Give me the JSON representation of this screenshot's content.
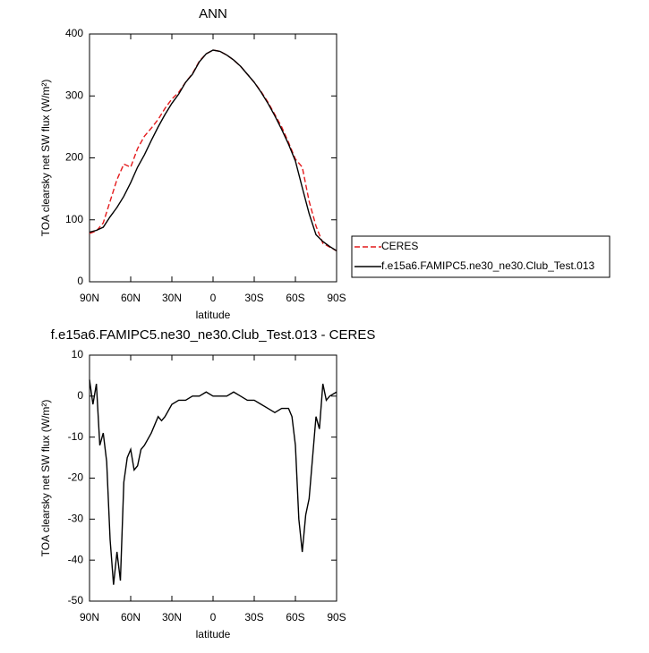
{
  "chart_data": [
    {
      "type": "line",
      "title": "ANN",
      "x_label": "latitude",
      "y_label": "TOA clearsky net SW flux (W/m²)",
      "xlim": [
        90,
        -90
      ],
      "xticks": [
        {
          "value": 90,
          "label": "90N"
        },
        {
          "value": 60,
          "label": "60N"
        },
        {
          "value": 30,
          "label": "30N"
        },
        0,
        {
          "value": -30,
          "label": "30S"
        },
        {
          "value": -60,
          "label": "60S"
        },
        {
          "value": -90,
          "label": "90S"
        }
      ],
      "ylim": [
        0,
        400
      ],
      "yticks": [
        0,
        100,
        200,
        300,
        400
      ],
      "legend": "right",
      "grid": false,
      "x": [
        90,
        85,
        80,
        75,
        70,
        65,
        60,
        55,
        50,
        45,
        40,
        35,
        30,
        25,
        20,
        15,
        10,
        5,
        0,
        -5,
        -10,
        -15,
        -20,
        -25,
        -30,
        -35,
        -40,
        -45,
        -50,
        -55,
        -60,
        -65,
        -70,
        -75,
        -80,
        -85,
        -90
      ],
      "series": [
        {
          "name": "CERES",
          "color": "#e41a1c",
          "line_style": "dashed",
          "values": [
            78,
            82,
            95,
            130,
            165,
            190,
            185,
            215,
            235,
            248,
            262,
            280,
            295,
            306,
            322,
            336,
            356,
            368,
            374,
            372,
            366,
            358,
            348,
            335,
            322,
            307,
            290,
            270,
            250,
            225,
            198,
            185,
            130,
            90,
            62,
            56,
            50
          ]
        },
        {
          "name": "f.e15a6.FAMIPC5.ne30_ne30.Club_Test.013",
          "color": "#000000",
          "line_style": "solid",
          "values": [
            80,
            83,
            88,
            105,
            120,
            138,
            160,
            185,
            205,
            228,
            250,
            270,
            288,
            303,
            322,
            335,
            355,
            368,
            374,
            372,
            366,
            358,
            348,
            335,
            322,
            306,
            288,
            268,
            246,
            222,
            195,
            152,
            110,
            76,
            65,
            57,
            50
          ]
        }
      ]
    },
    {
      "type": "line",
      "title": "f.e15a6.FAMIPC5.ne30_ne30.Club_Test.013 - CERES",
      "x_label": "latitude",
      "y_label": "TOA clearsky net SW flux (W/m²)",
      "xlim": [
        90,
        -90
      ],
      "xticks": [
        {
          "value": 90,
          "label": "90N"
        },
        {
          "value": 60,
          "label": "60N"
        },
        {
          "value": 30,
          "label": "30N"
        },
        0,
        {
          "value": -30,
          "label": "30S"
        },
        {
          "value": -60,
          "label": "60S"
        },
        {
          "value": -90,
          "label": "90S"
        }
      ],
      "ylim": [
        -50,
        10
      ],
      "yticks": [
        -50,
        -40,
        -30,
        -20,
        -10,
        0,
        10
      ],
      "grid": false,
      "x": [
        90,
        87.5,
        85,
        82.5,
        80,
        77.5,
        75,
        72.5,
        70,
        67.5,
        65,
        62.5,
        60,
        57.5,
        55,
        52.5,
        50,
        45,
        40,
        37.5,
        35,
        30,
        25,
        20,
        15,
        10,
        5,
        0,
        -5,
        -10,
        -15,
        -20,
        -25,
        -30,
        -35,
        -40,
        -45,
        -50,
        -55,
        -57.5,
        -60,
        -62.5,
        -65,
        -67.5,
        -70,
        -75,
        -77.5,
        -80,
        -82.5,
        -85,
        -90
      ],
      "series": [
        {
          "color": "#000000",
          "line_style": "solid",
          "values": [
            4,
            -2,
            3,
            -12,
            -9,
            -16,
            -35,
            -46,
            -38,
            -45,
            -21,
            -15,
            -13,
            -18,
            -17,
            -13,
            -12,
            -9,
            -5,
            -6,
            -5,
            -2,
            -1,
            -1,
            0,
            0,
            1,
            0,
            0,
            0,
            1,
            0,
            -1,
            -1,
            -2,
            -3,
            -4,
            -3,
            -3,
            -5,
            -12,
            -30,
            -38,
            -29,
            -25,
            -5,
            -8,
            3,
            -1,
            0,
            1
          ]
        }
      ]
    }
  ]
}
